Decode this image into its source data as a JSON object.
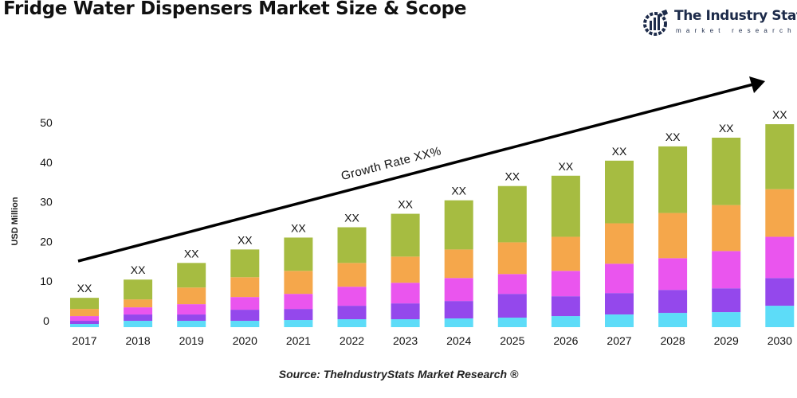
{
  "title": "Fridge Water Dispensers Market Size & Scope",
  "logo": {
    "name": "The Industry Stats",
    "tagline": "market research"
  },
  "source": "Source: TheIndustryStats Market Research ®",
  "chart_data": {
    "type": "bar",
    "stacked": true,
    "ylabel": "USD Million",
    "ylim": [
      0,
      50
    ],
    "yticks": [
      0,
      10,
      20,
      30,
      40,
      50
    ],
    "grid": false,
    "categories": [
      "2017",
      "2018",
      "2019",
      "2020",
      "2021",
      "2022",
      "2023",
      "2024",
      "2025",
      "2026",
      "2027",
      "2028",
      "2029",
      "2030"
    ],
    "data_labels": [
      "XX",
      "XX",
      "XX",
      "XX",
      "XX",
      "XX",
      "XX",
      "XX",
      "XX",
      "XX",
      "XX",
      "XX",
      "XX",
      "XX"
    ],
    "series": [
      {
        "color": "#5ddcf8",
        "values": [
          0.8,
          1.6,
          1.6,
          1.6,
          1.8,
          2.0,
          2.0,
          2.2,
          2.4,
          2.8,
          3.2,
          3.6,
          3.8,
          5.4
        ]
      },
      {
        "color": "#9448ec",
        "values": [
          0.8,
          1.6,
          1.6,
          2.8,
          2.8,
          3.4,
          4.0,
          4.4,
          6.0,
          5.0,
          5.4,
          5.8,
          6.0,
          7.0
        ]
      },
      {
        "color": "#ea55ee",
        "values": [
          1.2,
          1.8,
          2.6,
          3.2,
          3.8,
          4.8,
          5.2,
          5.8,
          5.0,
          6.4,
          7.4,
          8.0,
          9.4,
          10.4
        ]
      },
      {
        "color": "#f5a74b",
        "values": [
          1.8,
          2.0,
          4.2,
          5.0,
          5.8,
          6.0,
          6.6,
          7.2,
          8.0,
          8.6,
          10.2,
          11.4,
          11.6,
          12.0
        ]
      },
      {
        "color": "#a6bc41",
        "values": [
          2.8,
          5.0,
          6.2,
          7.0,
          8.4,
          9.0,
          10.8,
          12.4,
          14.2,
          15.4,
          15.8,
          16.8,
          17.0,
          16.4
        ]
      }
    ],
    "annotation": "Growth Rate XX%"
  }
}
